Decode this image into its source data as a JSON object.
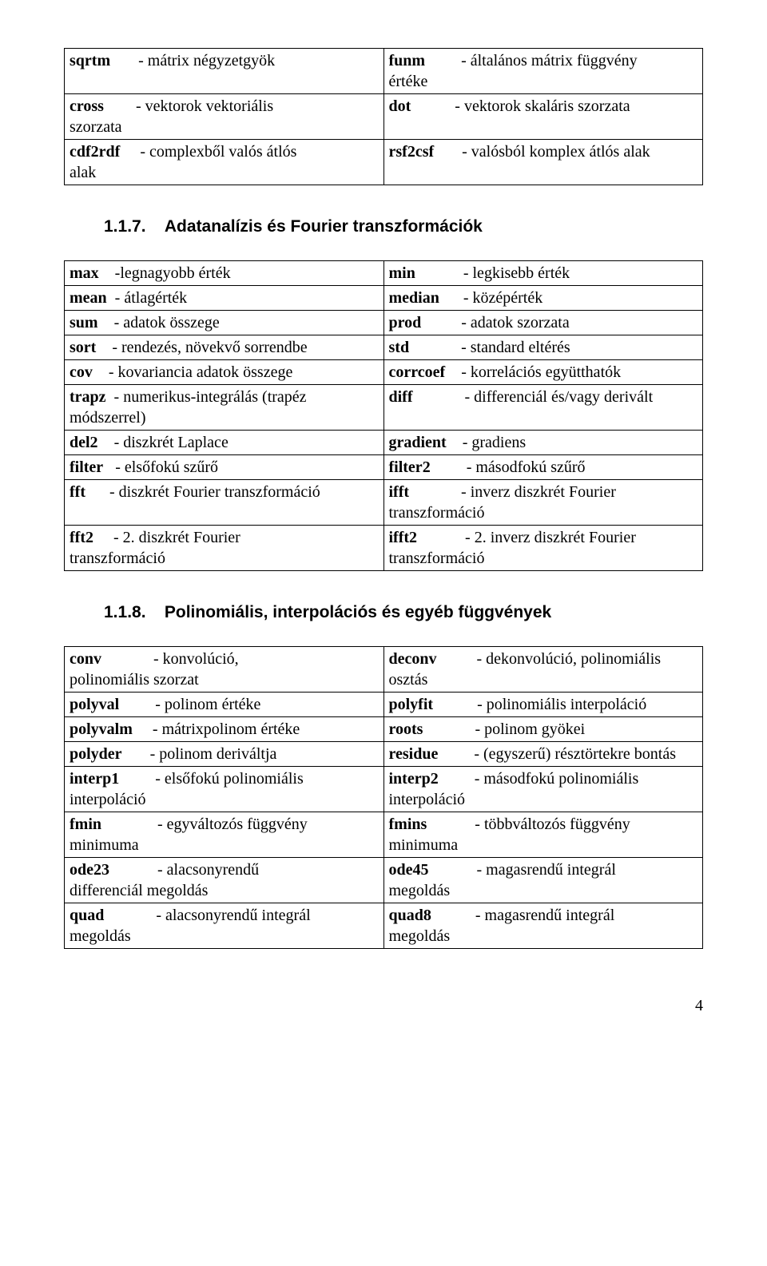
{
  "table1": {
    "rows": [
      [
        "sqrtm",
        "- mátrix négyzetgyök",
        "funm",
        "- általános mátrix függvény"
      ],
      [
        "",
        "",
        "értéke",
        ""
      ],
      [
        "cross",
        "- vektorok vektoriális",
        "dot",
        "- vektorok skaláris szorzata"
      ],
      [
        "szorzata",
        "",
        "",
        ""
      ],
      [
        "cdf2rdf",
        "- complexből valós átlós",
        "rsf2csf",
        "- valósból komplex átlós alak"
      ],
      [
        "alak",
        "",
        "",
        ""
      ]
    ]
  },
  "heading1": {
    "num": "1.1.7.",
    "text": "Adatanalízis és Fourier transzformációk"
  },
  "table2": {
    "rows": [
      [
        "max",
        "-legnagyobb érték",
        "min",
        "- legkisebb érték"
      ],
      [
        "mean",
        "- átlagérték",
        "median",
        "- középérték"
      ],
      [
        "sum",
        "- adatok összege",
        "prod",
        "- adatok szorzata"
      ],
      [
        "sort",
        "- rendezés, növekvő sorrendbe",
        "std",
        "- standard eltérés"
      ],
      [
        "cov",
        "- kovariancia adatok összege",
        "corrcoef",
        "- korrelációs együtthatók"
      ],
      [
        "trapz",
        "- numerikus-integrálás (trapéz",
        "diff",
        "- differenciál és/vagy derivált"
      ],
      [
        "",
        "módszerrel)",
        "",
        ""
      ],
      [
        "del2",
        "- diszkrét Laplace",
        "gradient",
        "- gradiens"
      ],
      [
        "filter",
        "- elsőfokú szűrő",
        "filter2",
        "- másodfokú szűrő"
      ],
      [
        "fft",
        "- diszkrét Fourier transzformáció",
        "ifft",
        "- inverz diszkrét Fourier"
      ],
      [
        "",
        "",
        "transzformáció",
        ""
      ],
      [
        "fft2",
        "- 2. diszkrét Fourier",
        "ifft2",
        "- 2. inverz diszkrét Fourier"
      ],
      [
        "",
        "transzformáció",
        "transzformáció",
        ""
      ]
    ]
  },
  "heading2": {
    "num": "1.1.8.",
    "text": "Polinomiális, interpolációs és egyéb függvények"
  },
  "table3": {
    "rows": [
      [
        "conv",
        "- konvolúció,",
        "deconv",
        "- dekonvolúció, polinomiális"
      ],
      [
        "",
        "polinomiális szorzat",
        "osztás",
        ""
      ],
      [
        "polyval",
        "- polinom értéke",
        "polyfit",
        "- polinomiális interpoláció"
      ],
      [
        "polyvalm",
        "- mátrixpolinom értéke",
        "roots",
        "- polinom gyökei"
      ],
      [
        "polyder",
        "- polinom deriváltja",
        "residue",
        "- (egyszerű) résztörtekre bontás"
      ],
      [
        "interp1",
        "- elsőfokú polinomiális",
        "interp2",
        "- másodfokú polinomiális"
      ],
      [
        "",
        "interpoláció",
        "interpoláció",
        ""
      ],
      [
        "fmin",
        "- egyváltozós függvény",
        "fmins",
        "- többváltozós függvény"
      ],
      [
        "",
        "minimuma",
        "minimuma",
        ""
      ],
      [
        "ode23",
        "- alacsonyrendű",
        "ode45",
        "- magasrendű integrál"
      ],
      [
        "",
        "differenciál megoldás",
        "megoldás",
        ""
      ],
      [
        "quad",
        "- alacsonyrendű integrál",
        "quad8",
        "- magasrendű integrál"
      ],
      [
        "",
        "megoldás",
        "megoldás",
        ""
      ]
    ]
  },
  "pagenum": "4"
}
